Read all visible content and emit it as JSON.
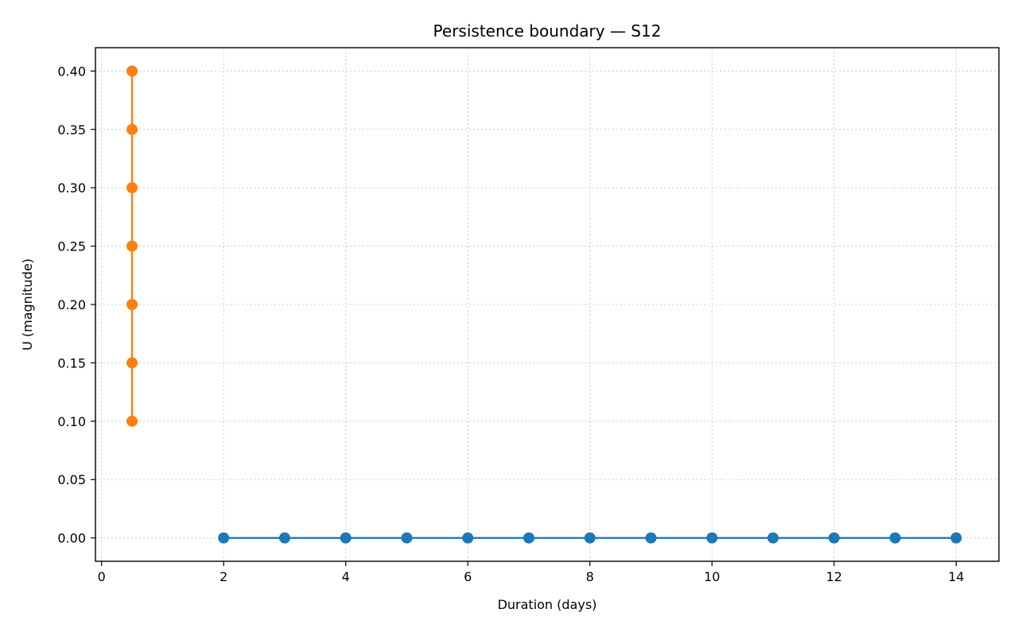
{
  "chart_data": {
    "type": "line",
    "title": "Persistence boundary — S12",
    "xlabel": "Duration (days)",
    "ylabel": "U (magnitude)",
    "xlim": [
      -0.1,
      14.7
    ],
    "ylim": [
      -0.02,
      0.42
    ],
    "xticks": [
      0,
      2,
      4,
      6,
      8,
      10,
      12,
      14
    ],
    "yticks": [
      0.0,
      0.05,
      0.1,
      0.15,
      0.2,
      0.25,
      0.3,
      0.35,
      0.4
    ],
    "ytick_labels": [
      "0.00",
      "0.05",
      "0.10",
      "0.15",
      "0.20",
      "0.25",
      "0.30",
      "0.35",
      "0.40"
    ],
    "grid": true,
    "series": [
      {
        "color": "#1f77b4",
        "x": [
          2,
          3,
          4,
          5,
          6,
          7,
          8,
          9,
          10,
          11,
          12,
          13,
          14
        ],
        "y": [
          0,
          0,
          0,
          0,
          0,
          0,
          0,
          0,
          0,
          0,
          0,
          0,
          0
        ]
      },
      {
        "color": "#ff7f0e",
        "x": [
          0.5,
          0.5,
          0.5,
          0.5,
          0.5,
          0.5,
          0.5
        ],
        "y": [
          0.1,
          0.15,
          0.2,
          0.25,
          0.3,
          0.35,
          0.4
        ]
      }
    ]
  }
}
